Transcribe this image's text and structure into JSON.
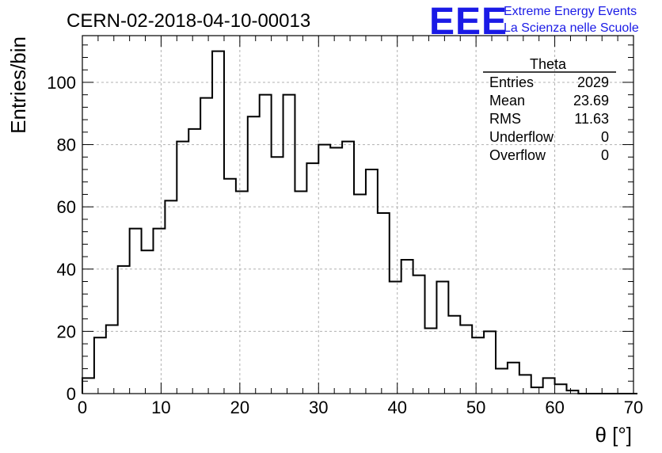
{
  "chart_data": {
    "type": "bar",
    "title": "CERN-02-2018-04-10-00013",
    "xlabel": "θ [°]",
    "ylabel": "Entries/bin",
    "xlim": [
      0,
      70
    ],
    "ylim": [
      0,
      115
    ],
    "bin_width": 1.5,
    "x_ticks": [
      0,
      10,
      20,
      30,
      40,
      50,
      60,
      70
    ],
    "y_ticks": [
      0,
      20,
      40,
      60,
      80,
      100
    ],
    "grid": true,
    "values": [
      5,
      18,
      22,
      41,
      53,
      46,
      53,
      62,
      81,
      85,
      95,
      110,
      69,
      65,
      89,
      96,
      76,
      96,
      65,
      74,
      80,
      79,
      81,
      64,
      72,
      58,
      36,
      43,
      38,
      21,
      36,
      25,
      22,
      18,
      20,
      8,
      10,
      6,
      2,
      5,
      3,
      1,
      0,
      0,
      0,
      0,
      0
    ],
    "stats_box": {
      "title": "Theta",
      "rows": [
        {
          "label": "Entries",
          "value": "2029"
        },
        {
          "label": "Mean",
          "value": "23.69"
        },
        {
          "label": "RMS",
          "value": "11.63"
        },
        {
          "label": "Underflow",
          "value": "0"
        },
        {
          "label": "Overflow",
          "value": "0"
        }
      ]
    }
  },
  "logo": {
    "text": "EEE",
    "line1": "Extreme Energy Events",
    "line2": "La Scienza nelle Scuole",
    "color": "#1a1ae6"
  }
}
